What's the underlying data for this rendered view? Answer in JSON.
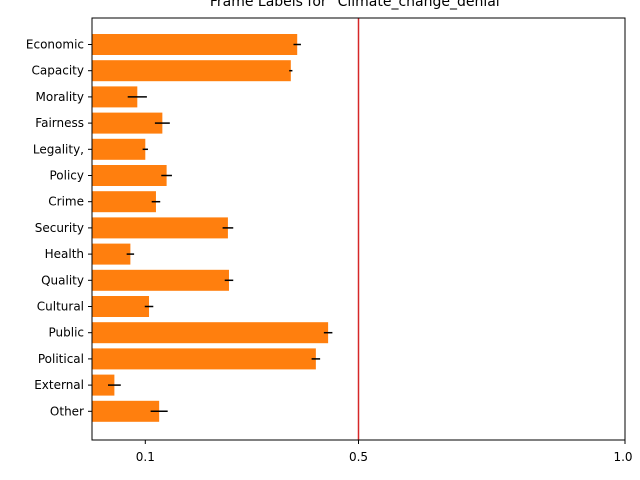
{
  "chart_data": {
    "type": "bar",
    "orientation": "horizontal",
    "title": "Frame Labels for \"Climate_change_denial\"",
    "xlabel": "",
    "ylabel": "",
    "xlim": [
      0,
      1.0
    ],
    "x_ticks": [
      {
        "value": 0.1,
        "label": "0.1"
      },
      {
        "value": 0.5,
        "label": "0.5"
      },
      {
        "value": 1.0,
        "label": "1.0"
      }
    ],
    "reference_line": {
      "value": 0.5,
      "color": "#d62728"
    },
    "bar_color": "#ff7f0e",
    "error_color": "#000000",
    "grid": false,
    "legend": "none",
    "categories": [
      "Economic",
      "Capacity",
      "Morality",
      "Fairness",
      "Legality,",
      "Policy",
      "Crime",
      "Security",
      "Health",
      "Quality",
      "Cultural",
      "Public",
      "Political",
      "External",
      "Other"
    ],
    "values": [
      0.385,
      0.373,
      0.085,
      0.132,
      0.1,
      0.14,
      0.12,
      0.255,
      0.072,
      0.257,
      0.107,
      0.443,
      0.42,
      0.042,
      0.126
    ],
    "errors": [
      0.007,
      0.003,
      0.018,
      0.014,
      0.005,
      0.01,
      0.008,
      0.01,
      0.007,
      0.008,
      0.008,
      0.008,
      0.008,
      0.012,
      0.016
    ]
  }
}
